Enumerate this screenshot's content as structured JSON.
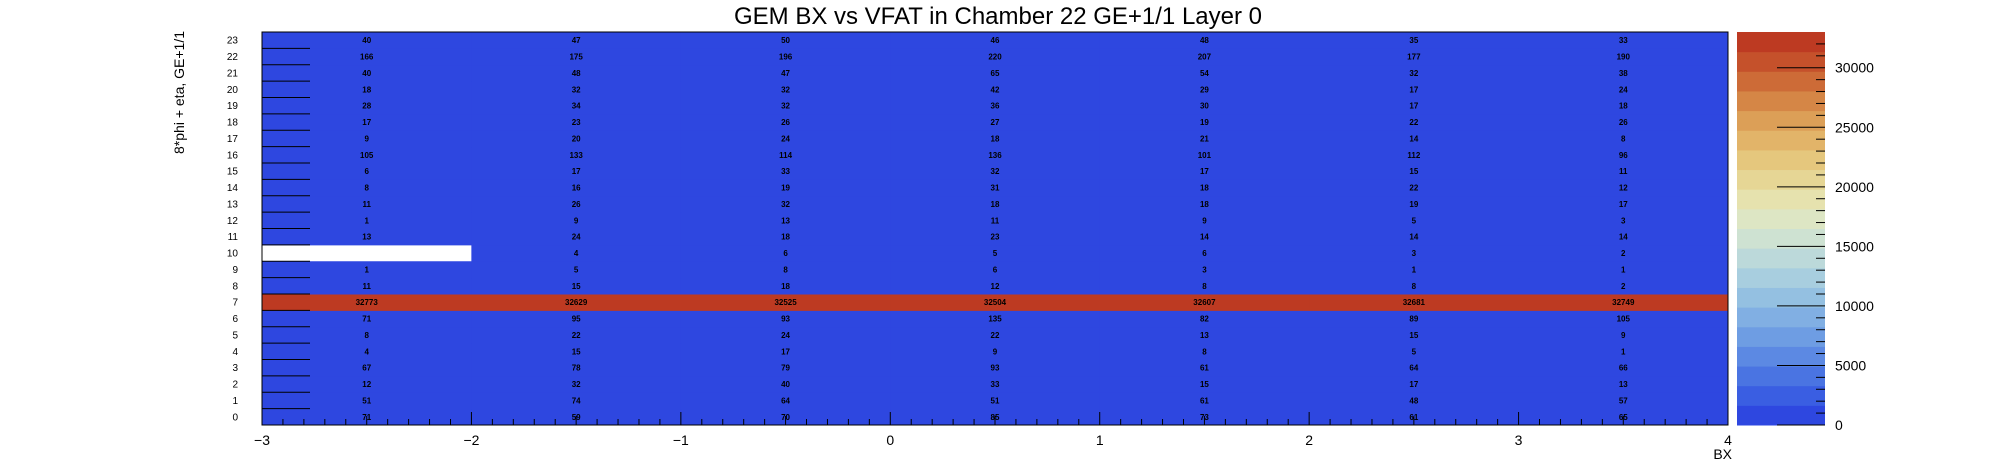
{
  "chart_data": {
    "type": "heatmap",
    "title": "GEM BX vs VFAT in Chamber 22 GE+1/1 Layer 0",
    "xlabel": "BX",
    "ylabel": "8*phi + eta, GE+1/1",
    "xlim": [
      -3,
      4
    ],
    "ylim": [
      0,
      24
    ],
    "x_tick_labels": [
      "−3",
      "−2",
      "−1",
      "0",
      "1",
      "2",
      "3",
      "4"
    ],
    "x_ticks": [
      -3,
      -2,
      -1,
      0,
      1,
      2,
      3,
      4
    ],
    "y_categories": [
      "0",
      "1",
      "2",
      "3",
      "4",
      "5",
      "6",
      "7",
      "8",
      "9",
      "10",
      "11",
      "12",
      "13",
      "14",
      "15",
      "16",
      "17",
      "18",
      "19",
      "20",
      "21",
      "22",
      "23"
    ],
    "x_bin_centers": [
      -2.5,
      -1.5,
      -0.5,
      0.5,
      1.5,
      2.5,
      3.5
    ],
    "values": [
      [
        71,
        59,
        70,
        85,
        73,
        61,
        65
      ],
      [
        51,
        74,
        64,
        51,
        61,
        48,
        57
      ],
      [
        12,
        32,
        40,
        33,
        15,
        17,
        13
      ],
      [
        67,
        78,
        79,
        93,
        61,
        64,
        66
      ],
      [
        4,
        15,
        17,
        9,
        8,
        5,
        1
      ],
      [
        8,
        22,
        24,
        22,
        13,
        15,
        9
      ],
      [
        71,
        95,
        93,
        135,
        82,
        89,
        105
      ],
      [
        32773,
        32629,
        32525,
        32504,
        32607,
        32681,
        32749
      ],
      [
        11,
        15,
        18,
        12,
        8,
        8,
        2
      ],
      [
        1,
        5,
        8,
        6,
        3,
        1,
        1
      ],
      [
        null,
        4,
        6,
        5,
        6,
        3,
        2
      ],
      [
        13,
        24,
        18,
        23,
        14,
        14,
        14
      ],
      [
        1,
        9,
        13,
        11,
        9,
        5,
        3
      ],
      [
        11,
        26,
        32,
        18,
        18,
        19,
        17
      ],
      [
        8,
        16,
        19,
        31,
        18,
        22,
        12
      ],
      [
        6,
        17,
        33,
        32,
        17,
        15,
        11
      ],
      [
        105,
        133,
        114,
        136,
        101,
        112,
        96
      ],
      [
        9,
        20,
        24,
        18,
        21,
        14,
        8
      ],
      [
        17,
        23,
        26,
        27,
        19,
        22,
        26
      ],
      [
        28,
        34,
        32,
        36,
        30,
        17,
        18
      ],
      [
        18,
        32,
        32,
        42,
        29,
        17,
        24
      ],
      [
        40,
        48,
        47,
        65,
        54,
        32,
        38
      ],
      [
        166,
        175,
        196,
        220,
        207,
        177,
        190
      ],
      [
        40,
        47,
        50,
        46,
        48,
        35,
        33
      ]
    ],
    "colorbar": {
      "min": 0,
      "max": 33000,
      "tick_values": [
        0,
        5000,
        10000,
        15000,
        20000,
        25000,
        30000
      ],
      "tick_labels": [
        "0",
        "5000",
        "10000",
        "15000",
        "20000",
        "25000",
        "30000"
      ],
      "colors": [
        "#2e47e0",
        "#3a5ee2",
        "#4a74e2",
        "#5c89e3",
        "#6e9de3",
        "#81afe3",
        "#94c0e1",
        "#a8cedf",
        "#bcd9da",
        "#cee2d2",
        "#dde6c4",
        "#e6e2ae",
        "#e6d695",
        "#e5c77d",
        "#e2b469",
        "#dc9f57",
        "#d58646",
        "#cd6b37",
        "#c5512b",
        "#bd3a22"
      ]
    },
    "grid": false,
    "legend": "none"
  }
}
